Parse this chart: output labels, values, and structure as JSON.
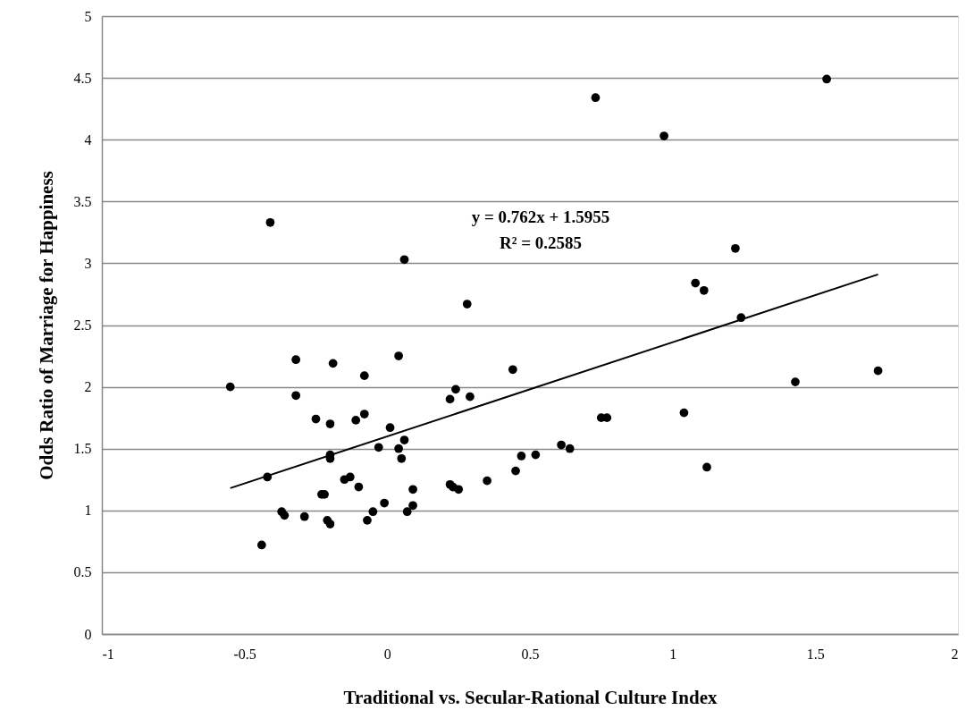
{
  "chart_data": {
    "type": "scatter",
    "xlabel": "Traditional vs. Secular-Rational Culture Index",
    "ylabel": "Odds Ratio of Marriage for Happiness",
    "annotations": [
      "y = 0.762x + 1.5955",
      "R² = 0.2585"
    ],
    "xlim": [
      -1,
      2
    ],
    "xticks": [
      -1,
      -0.5,
      0,
      0.5,
      1,
      1.5,
      2
    ],
    "ylim": [
      0,
      5
    ],
    "yticks": [
      0,
      0.5,
      1,
      1.5,
      2,
      2.5,
      3,
      3.5,
      4,
      4.5,
      5
    ],
    "grid": "y",
    "series": [
      {
        "marker": "circle",
        "color": "#000000",
        "x": [
          -0.55,
          -0.32,
          -0.32,
          -0.25,
          -0.42,
          -0.37,
          -0.36,
          -0.29,
          -0.44,
          -0.41,
          0.06,
          0.28,
          -0.19,
          0.04,
          -0.08,
          0.44,
          0.24,
          0.22,
          0.29,
          -0.2,
          -0.11,
          -0.08,
          0.01,
          0.06,
          -0.03,
          0.04,
          0.05,
          -0.2,
          -0.2,
          0.47,
          0.52,
          0.45,
          0.35,
          0.22,
          0.23,
          0.25,
          -0.15,
          -0.13,
          -0.1,
          -0.23,
          -0.22,
          0.09,
          -0.01,
          -0.05,
          -0.07,
          0.09,
          0.07,
          -0.21,
          -0.2,
          0.61,
          0.64,
          0.75,
          0.77,
          1.04,
          1.12,
          1.43,
          1.72,
          0.73,
          1.54,
          0.97,
          1.22,
          1.08,
          1.11,
          1.24
        ],
        "values": [
          2.0,
          2.22,
          1.93,
          1.74,
          1.27,
          0.99,
          0.96,
          0.95,
          0.72,
          3.33,
          3.03,
          2.67,
          2.19,
          2.25,
          2.09,
          2.14,
          1.98,
          1.9,
          1.92,
          1.7,
          1.73,
          1.78,
          1.67,
          1.57,
          1.51,
          1.5,
          1.42,
          1.45,
          1.42,
          1.44,
          1.45,
          1.32,
          1.24,
          1.21,
          1.19,
          1.17,
          1.25,
          1.27,
          1.19,
          1.13,
          1.13,
          1.17,
          1.06,
          0.99,
          0.92,
          1.04,
          0.99,
          0.92,
          0.89,
          1.53,
          1.5,
          1.75,
          1.75,
          1.79,
          1.35,
          2.04,
          2.13,
          4.34,
          4.49,
          4.03,
          3.12,
          2.84,
          2.78,
          2.56
        ]
      },
      {
        "type": "line",
        "color": "#000000",
        "line_style": "solid",
        "x": [
          -0.55,
          1.72
        ],
        "values": [
          1.18,
          2.91
        ]
      }
    ]
  }
}
